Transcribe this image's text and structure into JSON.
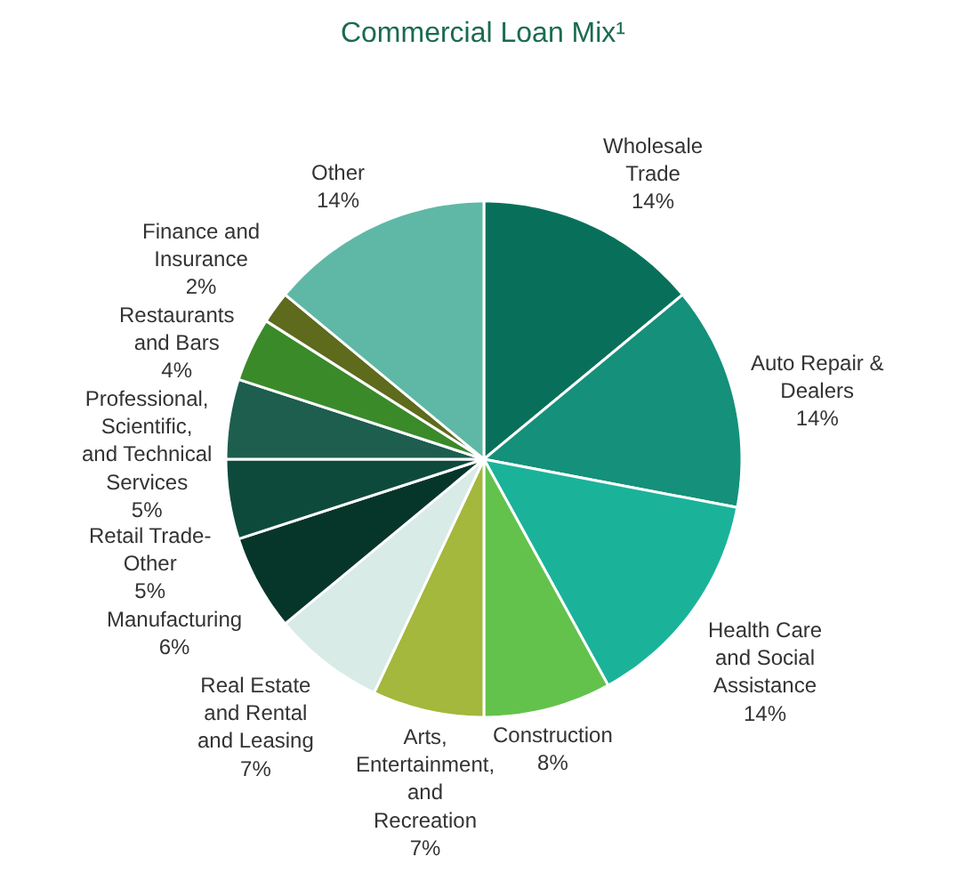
{
  "chart_data": {
    "type": "pie",
    "title": "Commercial Loan Mix¹",
    "categories": [
      "Wholesale Trade",
      "Auto Repair & Dealers",
      "Health Care and Social Assistance",
      "Construction",
      "Arts, Entertainment, and Recreation",
      "Real Estate and Rental and Leasing",
      "Manufacturing",
      "Retail Trade-Other",
      "Professional, Scientific, and Technical Services",
      "Restaurants and Bars",
      "Finance and Insurance",
      "Other"
    ],
    "values": [
      14,
      14,
      14,
      8,
      7,
      7,
      6,
      5,
      5,
      4,
      2,
      14
    ],
    "value_labels": [
      "14%",
      "14%",
      "14%",
      "8%",
      "7%",
      "7%",
      "6%",
      "5%",
      "5%",
      "4%",
      "2%",
      "14%"
    ],
    "colors": [
      "#08705a",
      "#15907a",
      "#1ab39a",
      "#63c24c",
      "#a3b83c",
      "#d8ebe6",
      "#06362a",
      "#0e4a3c",
      "#1d5e4e",
      "#3a8a2a",
      "#5e6a1c",
      "#5fb8a6"
    ],
    "legend": false
  }
}
